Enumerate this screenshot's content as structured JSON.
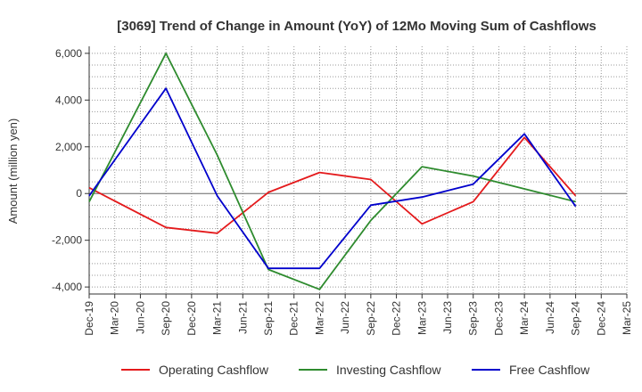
{
  "chart_data": {
    "type": "line",
    "title": "[3069]  Trend of Change in Amount (YoY) of 12Mo Moving Sum of Cashflows",
    "xlabel": "",
    "ylabel": "Amount (million yen)",
    "ylim": [
      -4300,
      6300
    ],
    "yticks": [
      -4000,
      -2000,
      0,
      2000,
      4000,
      6000
    ],
    "ytick_labels": [
      "-4,000",
      "-2,000",
      "0",
      "2,000",
      "4,000",
      "6,000"
    ],
    "categories": [
      "Dec-19",
      "Mar-20",
      "Jun-20",
      "Sep-20",
      "Dec-20",
      "Mar-21",
      "Jun-21",
      "Sep-21",
      "Dec-21",
      "Mar-22",
      "Jun-22",
      "Sep-22",
      "Dec-22",
      "Mar-23",
      "Jun-23",
      "Sep-23",
      "Dec-23",
      "Mar-24",
      "Jun-24",
      "Sep-24",
      "Dec-24",
      "Mar-25"
    ],
    "grid": true,
    "legend_position": "bottom",
    "series": [
      {
        "name": "Operating Cashflow",
        "color": "#e41a1c",
        "values": [
          250,
          null,
          null,
          -1450,
          null,
          -1700,
          null,
          50,
          null,
          900,
          null,
          600,
          null,
          -1300,
          null,
          -350,
          null,
          2400,
          null,
          -100,
          null,
          null
        ]
      },
      {
        "name": "Investing Cashflow",
        "color": "#2e8b2e",
        "values": [
          -350,
          null,
          null,
          6000,
          null,
          1650,
          null,
          -3250,
          null,
          -4100,
          null,
          -1150,
          null,
          1150,
          null,
          750,
          null,
          200,
          null,
          -350,
          null,
          null
        ]
      },
      {
        "name": "Free Cashflow",
        "color": "#0000cc",
        "values": [
          -100,
          null,
          null,
          4500,
          null,
          -100,
          null,
          -3200,
          null,
          -3200,
          null,
          -500,
          null,
          -150,
          null,
          400,
          null,
          2550,
          null,
          -550,
          null,
          null
        ]
      }
    ]
  }
}
